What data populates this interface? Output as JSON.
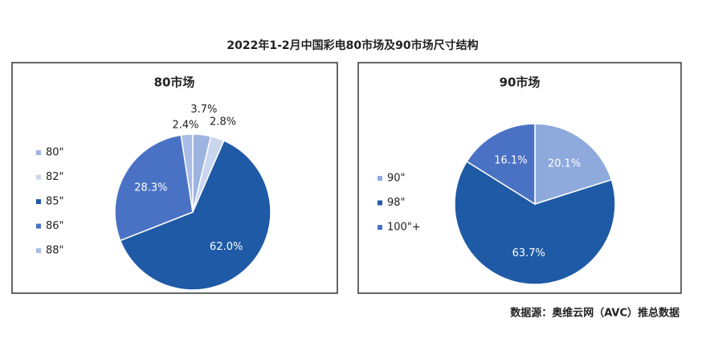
{
  "title": "2022年1-2月中国彩电80市场及90市场尺寸结构",
  "source": "数据源：奥维云网（AVC）推总数据",
  "chart_data": [
    {
      "type": "pie",
      "title": "80市场",
      "categories": [
        "80\"",
        "82\"",
        "85\"",
        "86\"",
        "88\""
      ],
      "values": [
        3.7,
        2.8,
        62.0,
        28.3,
        2.4
      ],
      "value_labels": [
        "3.7%",
        "2.8%",
        "62.0%",
        "28.3%",
        "2.4%"
      ],
      "colors": [
        "#9db4df",
        "#c9d6ee",
        "#1f5aa6",
        "#4a72c4",
        "#a9bde6"
      ]
    },
    {
      "type": "pie",
      "title": "90市场",
      "categories": [
        "90\"",
        "98\"",
        "100\"+"
      ],
      "values": [
        20.1,
        63.7,
        16.1
      ],
      "value_labels": [
        "20.1%",
        "63.7%",
        "16.1%"
      ],
      "colors": [
        "#8eaadc",
        "#1f5aa6",
        "#4a72c4"
      ]
    }
  ]
}
